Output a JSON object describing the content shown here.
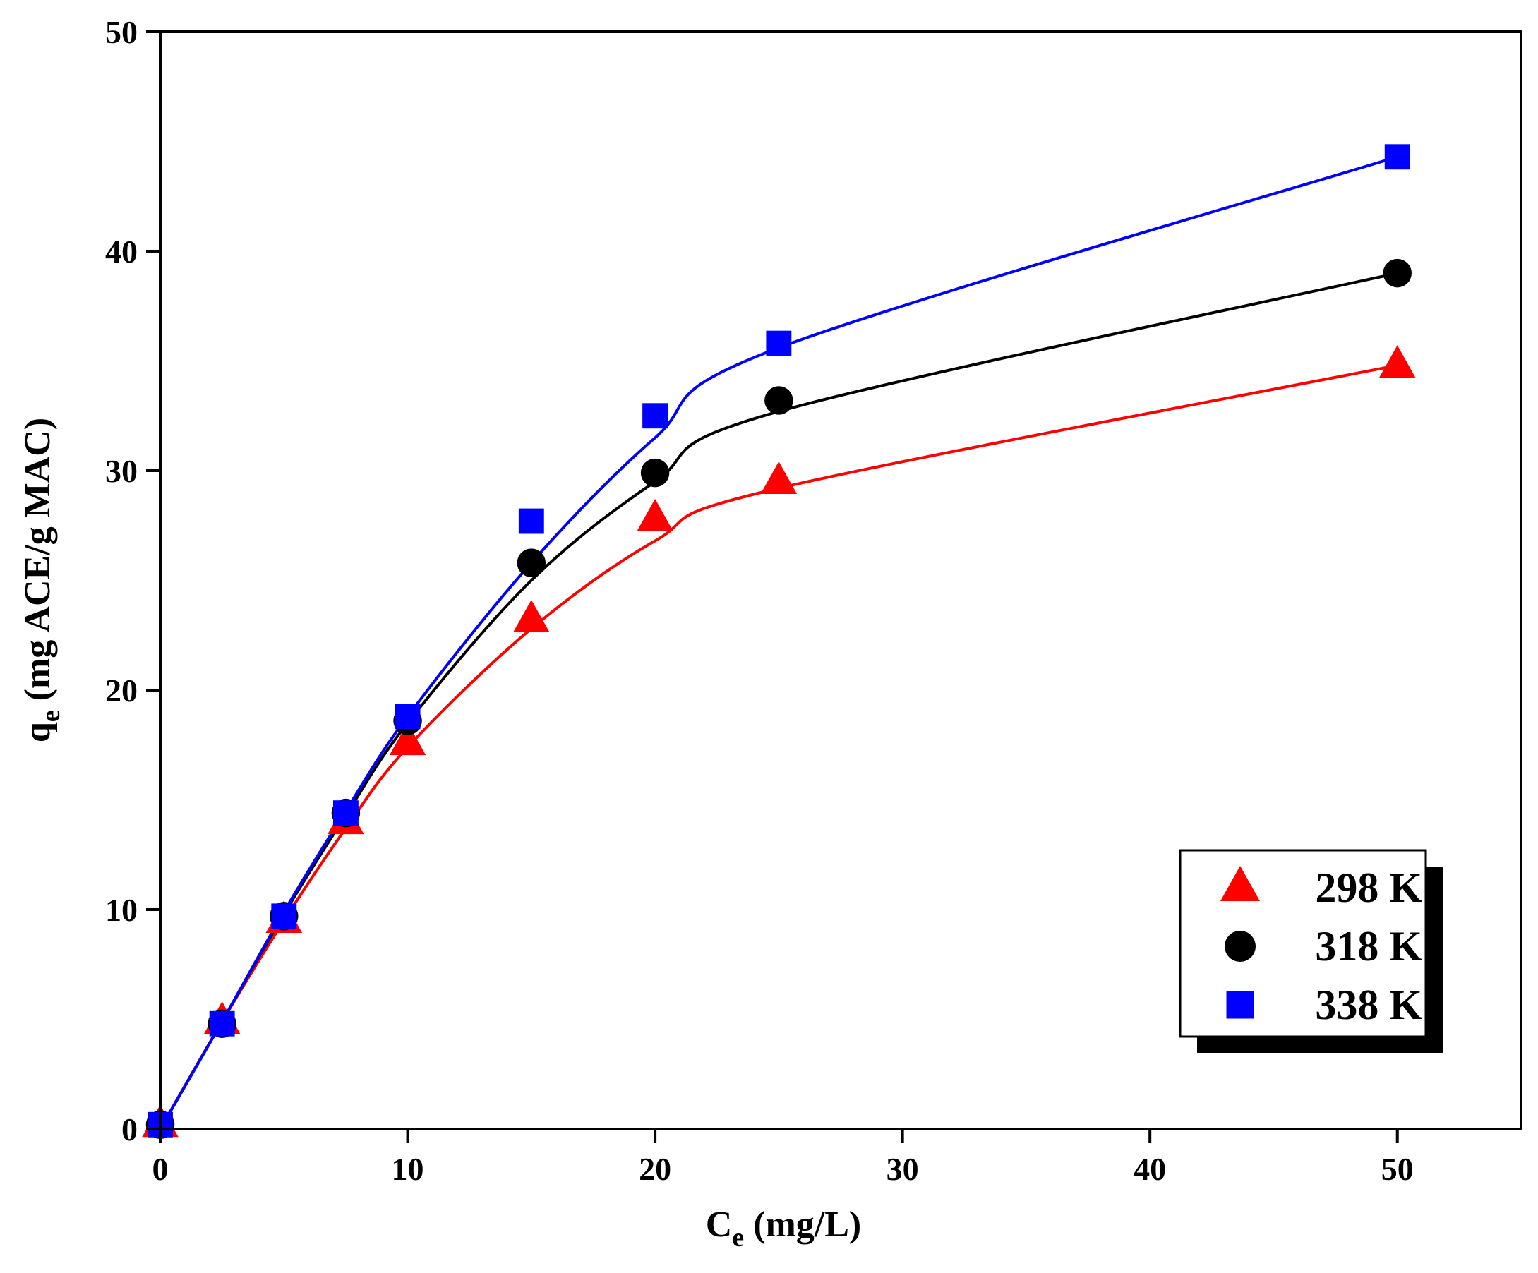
{
  "chart_data": {
    "type": "scatter",
    "xlabel": {
      "main": "C",
      "sub": "e",
      "rest": " (mg/L)"
    },
    "ylabel": {
      "main": "q",
      "sub": "e",
      "rest": " (mg ACE/g MAC)"
    },
    "xlim": [
      0,
      55
    ],
    "ylim": [
      0,
      50
    ],
    "xticks": [
      0,
      10,
      20,
      30,
      40,
      50
    ],
    "yticks": [
      0,
      10,
      20,
      30,
      40,
      50
    ],
    "x": [
      0,
      2.5,
      5,
      7.5,
      10,
      15,
      20,
      25,
      50
    ],
    "grid": false,
    "legend_position": "bottom-right",
    "series": [
      {
        "name": "298 K",
        "marker": "triangle",
        "color": "#ff0000",
        "values": [
          0.2,
          4.9,
          9.5,
          14.0,
          17.6,
          23.2,
          27.8,
          29.5,
          34.8
        ],
        "fit": [
          0,
          4.9,
          9.5,
          13.7,
          17.4,
          22.8,
          26.8,
          29.2,
          34.8
        ]
      },
      {
        "name": "318 K",
        "marker": "circle",
        "color": "#000000",
        "values": [
          0.2,
          4.8,
          9.7,
          14.4,
          18.6,
          25.8,
          29.9,
          33.2,
          39.0
        ],
        "fit": [
          0,
          4.9,
          9.8,
          14.3,
          18.5,
          25.0,
          29.5,
          32.7,
          39.0
        ]
      },
      {
        "name": "338 K",
        "marker": "square",
        "color": "#0000ff",
        "values": [
          0.2,
          4.8,
          9.7,
          14.4,
          18.8,
          27.7,
          32.5,
          35.8,
          44.3
        ],
        "fit": [
          0,
          4.9,
          9.9,
          14.5,
          18.8,
          25.8,
          31.5,
          35.6,
          44.3
        ]
      }
    ]
  }
}
